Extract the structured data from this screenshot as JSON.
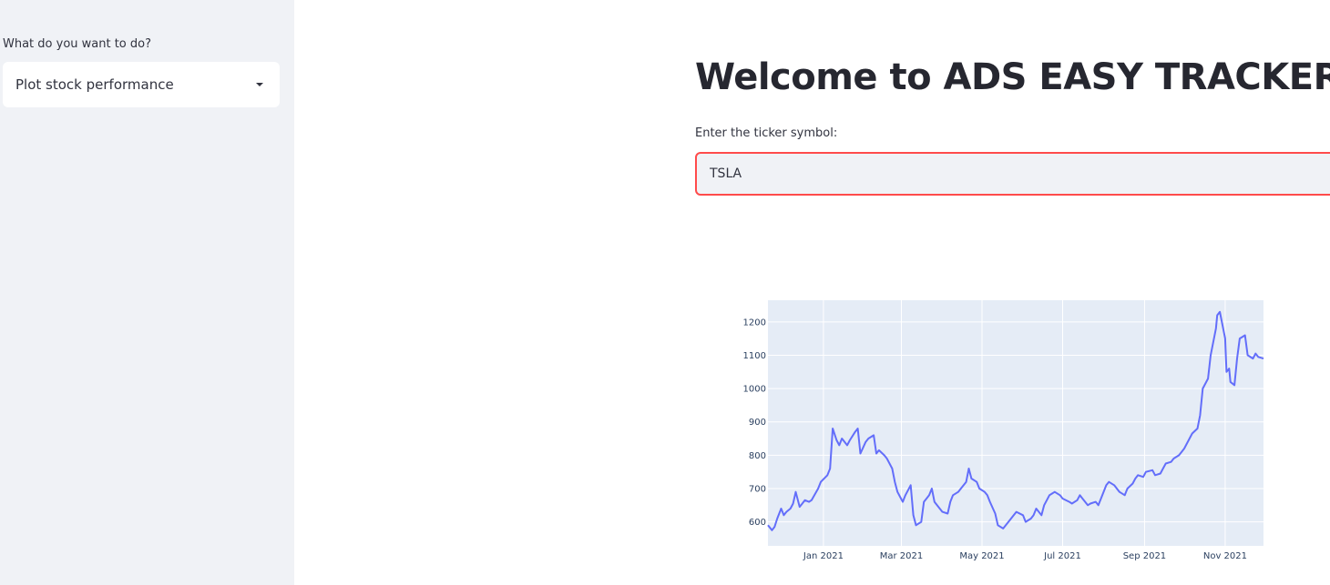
{
  "sidebar": {
    "label": "What do you want to do?",
    "select_value": "Plot stock performance",
    "caret_icon": "caret-down-icon"
  },
  "main": {
    "title": "Welcome to ADS EASY TRACKER!",
    "input_label": "Enter the ticker symbol:",
    "input_value": "TSLA"
  },
  "chart_data": {
    "type": "line",
    "title": "",
    "xlabel": "",
    "ylabel": "",
    "ylim": [
      528,
      1265
    ],
    "xlim": [
      "2020-11-20",
      "2021-11-30"
    ],
    "grid": true,
    "line_color": "#636efa",
    "plot_bg": "#e5ecf6",
    "x_ticks": [
      {
        "date": "2021-01-01",
        "label": "Jan 2021"
      },
      {
        "date": "2021-03-01",
        "label": "Mar 2021"
      },
      {
        "date": "2021-05-01",
        "label": "May 2021"
      },
      {
        "date": "2021-07-01",
        "label": "Jul 2021"
      },
      {
        "date": "2021-09-01",
        "label": "Sep 2021"
      },
      {
        "date": "2021-11-01",
        "label": "Nov 2021"
      }
    ],
    "y_ticks": [
      600,
      700,
      800,
      900,
      1000,
      1100,
      1200
    ],
    "series": [
      {
        "x": [
          "2020-11-20",
          "2020-11-23",
          "2020-11-25",
          "2020-11-27",
          "2020-11-30",
          "2020-12-02",
          "2020-12-04",
          "2020-12-07",
          "2020-12-09",
          "2020-12-11",
          "2020-12-14",
          "2020-12-16",
          "2020-12-18",
          "2020-12-21",
          "2020-12-23",
          "2020-12-28",
          "2020-12-30",
          "2021-01-04",
          "2021-01-06",
          "2021-01-08",
          "2021-01-11",
          "2021-01-13",
          "2021-01-15",
          "2021-01-19",
          "2021-01-21",
          "2021-01-25",
          "2021-01-27",
          "2021-01-29",
          "2021-02-02",
          "2021-02-04",
          "2021-02-08",
          "2021-02-10",
          "2021-02-12",
          "2021-02-16",
          "2021-02-18",
          "2021-02-22",
          "2021-02-24",
          "2021-02-26",
          "2021-03-02",
          "2021-03-04",
          "2021-03-08",
          "2021-03-10",
          "2021-03-12",
          "2021-03-16",
          "2021-03-18",
          "2021-03-22",
          "2021-03-24",
          "2021-03-26",
          "2021-03-30",
          "2021-04-01",
          "2021-04-05",
          "2021-04-07",
          "2021-04-09",
          "2021-04-13",
          "2021-04-15",
          "2021-04-19",
          "2021-04-21",
          "2021-04-23",
          "2021-04-27",
          "2021-04-29",
          "2021-05-03",
          "2021-05-05",
          "2021-05-07",
          "2021-05-11",
          "2021-05-13",
          "2021-05-17",
          "2021-05-19",
          "2021-05-21",
          "2021-05-25",
          "2021-05-27",
          "2021-06-01",
          "2021-06-03",
          "2021-06-07",
          "2021-06-09",
          "2021-06-11",
          "2021-06-15",
          "2021-06-17",
          "2021-06-21",
          "2021-06-23",
          "2021-06-25",
          "2021-06-29",
          "2021-07-01",
          "2021-07-06",
          "2021-07-08",
          "2021-07-12",
          "2021-07-14",
          "2021-07-16",
          "2021-07-20",
          "2021-07-22",
          "2021-07-26",
          "2021-07-28",
          "2021-07-30",
          "2021-08-03",
          "2021-08-05",
          "2021-08-09",
          "2021-08-11",
          "2021-08-13",
          "2021-08-17",
          "2021-08-19",
          "2021-08-23",
          "2021-08-25",
          "2021-08-27",
          "2021-08-31",
          "2021-09-02",
          "2021-09-07",
          "2021-09-09",
          "2021-09-13",
          "2021-09-15",
          "2021-09-17",
          "2021-09-21",
          "2021-09-23",
          "2021-09-27",
          "2021-09-29",
          "2021-10-01",
          "2021-10-05",
          "2021-10-07",
          "2021-10-11",
          "2021-10-13",
          "2021-10-15",
          "2021-10-19",
          "2021-10-21",
          "2021-10-25",
          "2021-10-26",
          "2021-10-28",
          "2021-11-01",
          "2021-11-02",
          "2021-11-04",
          "2021-11-05",
          "2021-11-08",
          "2021-11-10",
          "2021-11-12",
          "2021-11-16",
          "2021-11-18",
          "2021-11-22",
          "2021-11-24",
          "2021-11-26",
          "2021-11-30"
        ],
        "y": [
          590,
          575,
          585,
          610,
          640,
          620,
          630,
          640,
          655,
          690,
          645,
          655,
          665,
          660,
          665,
          700,
          720,
          740,
          760,
          880,
          845,
          830,
          850,
          830,
          845,
          870,
          880,
          805,
          840,
          850,
          860,
          805,
          815,
          800,
          790,
          760,
          720,
          690,
          660,
          680,
          710,
          620,
          590,
          600,
          660,
          680,
          700,
          660,
          640,
          630,
          625,
          660,
          680,
          690,
          700,
          720,
          760,
          730,
          720,
          700,
          690,
          680,
          660,
          625,
          590,
          580,
          590,
          600,
          620,
          630,
          620,
          600,
          610,
          620,
          640,
          620,
          650,
          680,
          685,
          690,
          680,
          670,
          660,
          655,
          665,
          680,
          670,
          650,
          655,
          660,
          650,
          670,
          710,
          720,
          710,
          700,
          690,
          680,
          700,
          715,
          730,
          740,
          735,
          750,
          755,
          740,
          745,
          760,
          775,
          780,
          790,
          800,
          810,
          820,
          850,
          865,
          880,
          920,
          1000,
          1030,
          1100,
          1180,
          1220,
          1230,
          1150,
          1050,
          1060,
          1020,
          1010,
          1090,
          1150,
          1160,
          1100,
          1090,
          1105,
          1095,
          1090
        ]
      }
    ]
  }
}
